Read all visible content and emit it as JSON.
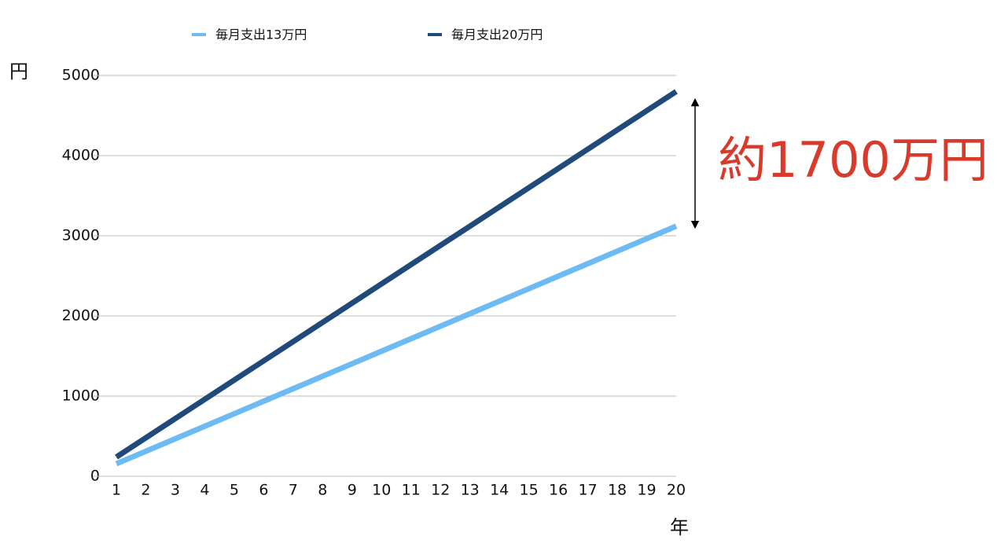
{
  "chart_data": {
    "type": "line",
    "x": [
      1,
      2,
      3,
      4,
      5,
      6,
      7,
      8,
      9,
      10,
      11,
      12,
      13,
      14,
      15,
      16,
      17,
      18,
      19,
      20
    ],
    "xlim": [
      1,
      20
    ],
    "xticks": [
      1,
      2,
      3,
      4,
      5,
      6,
      7,
      8,
      9,
      10,
      11,
      12,
      13,
      14,
      15,
      16,
      17,
      18,
      19,
      20
    ],
    "ylim": [
      0,
      5000
    ],
    "yticks": [
      0,
      1000,
      2000,
      3000,
      4000,
      5000
    ],
    "y_label": "円",
    "x_label": "年",
    "annotation": "約1700万円",
    "grid": true,
    "series": [
      {
        "name": "毎月支出13万円",
        "color": "#6dbbf2",
        "values": [
          156,
          312,
          468,
          624,
          780,
          936,
          1092,
          1248,
          1404,
          1560,
          1716,
          1872,
          2028,
          2184,
          2340,
          2496,
          2652,
          2808,
          2964,
          3120
        ]
      },
      {
        "name": "毎月支出20万円",
        "color": "#1f4a79",
        "values": [
          240,
          480,
          720,
          960,
          1200,
          1440,
          1680,
          1920,
          2160,
          2400,
          2640,
          2880,
          3120,
          3360,
          3600,
          3840,
          4080,
          4320,
          4560,
          4800
        ]
      }
    ]
  }
}
